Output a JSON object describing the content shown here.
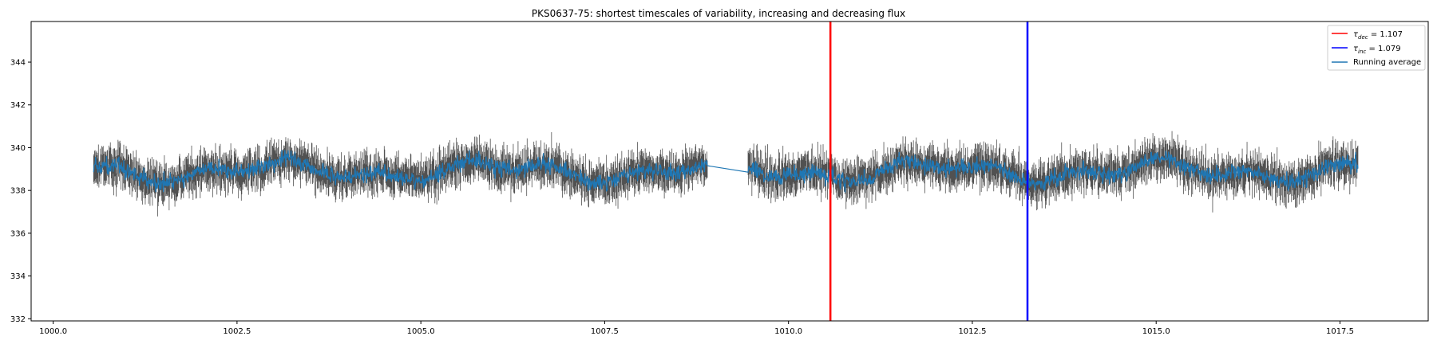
{
  "chart_data": {
    "type": "line",
    "title": "PKS0637-75: shortest timescales of variability, increasing and decreasing flux",
    "xlabel": "",
    "ylabel": "",
    "xlim": [
      999.7,
      1018.7
    ],
    "ylim": [
      331.9,
      345.9
    ],
    "x_ticks": [
      1000.0,
      1002.5,
      1005.0,
      1007.5,
      1010.0,
      1012.5,
      1015.0,
      1017.5
    ],
    "x_tick_labels": [
      "1000.0",
      "1002.5",
      "1005.0",
      "1007.5",
      "1010.0",
      "1012.5",
      "1015.0",
      "1017.5"
    ],
    "y_ticks": [
      332,
      334,
      336,
      338,
      340,
      342,
      344
    ],
    "y_tick_labels": [
      "332",
      "334",
      "336",
      "338",
      "340",
      "342",
      "344"
    ],
    "grid": false,
    "legend_placement": "top-right",
    "observation_windows": [
      {
        "start": 1000.55,
        "end": 1008.9
      },
      {
        "start": 1009.45,
        "end": 1017.75
      }
    ],
    "typical_flux_range": [
      337.0,
      341.0
    ],
    "flux_mean": 338.9,
    "series": [
      {
        "name": "Running average",
        "role": "running-average",
        "color": "#1f77b4"
      },
      {
        "name": "data",
        "role": "errorbars",
        "color": "#333333"
      }
    ],
    "vertical_lines": [
      {
        "name": "decreasing",
        "x": 1010.57,
        "color": "#ff0000",
        "label_symbol": "τ",
        "label_sub": "dec",
        "label_value": " = 1.107"
      },
      {
        "name": "increasing",
        "x": 1013.25,
        "color": "#0000ff",
        "label_symbol": "τ",
        "label_sub": "inc",
        "label_value": " = 1.079"
      }
    ],
    "legend": [
      {
        "symbol": "τ",
        "sub": "dec",
        "value": " = 1.107",
        "color": "#ff0000"
      },
      {
        "symbol": "τ",
        "sub": "inc",
        "value": " = 1.079",
        "color": "#0000ff"
      },
      {
        "text": "Running average",
        "color": "#1f77b4"
      }
    ]
  }
}
